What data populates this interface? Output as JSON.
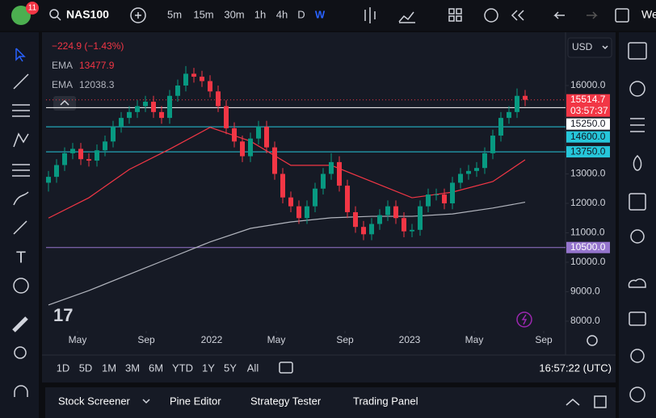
{
  "toolbar": {
    "badge": "11",
    "symbol": "NAS100",
    "intervals": [
      "5m",
      "15m",
      "30m",
      "1h",
      "4h",
      "D",
      "W"
    ],
    "active_interval": "W",
    "layout_name": "We"
  },
  "chart_data": {
    "type": "candlestick",
    "change": "−224.9 (−1.43%)",
    "currency": "USD",
    "ylim": [
      7671,
      17753
    ],
    "yticks": [
      {
        "value": 16000,
        "label": "16000.0"
      },
      {
        "value": 13000,
        "label": "13000.0"
      },
      {
        "value": 12000,
        "label": "12000.0"
      },
      {
        "value": 11000,
        "label": "11000.0"
      },
      {
        "value": 10000,
        "label": "10000.0"
      },
      {
        "value": 9000,
        "label": "9000.0"
      },
      {
        "value": 8000,
        "label": "8000.0"
      }
    ],
    "xlim": [
      -0.3,
      64
    ],
    "xticks": [
      {
        "value": 3.6,
        "label": "May"
      },
      {
        "value": 12.1,
        "label": "Sep"
      },
      {
        "value": 20.2,
        "label": "2022"
      },
      {
        "value": 28.2,
        "label": "May"
      },
      {
        "value": 36.7,
        "label": "Sep"
      },
      {
        "value": 44.7,
        "label": "2023"
      },
      {
        "value": 52.7,
        "label": "May"
      },
      {
        "value": 61.3,
        "label": "Sep"
      }
    ],
    "up_color": "#089981",
    "down_color": "#f23645",
    "candles": {
      "open": [
        12700,
        12900,
        13300,
        13700,
        13850,
        13500,
        13450,
        13800,
        14100,
        14600,
        14900,
        15100,
        15300,
        15450,
        15100,
        14900,
        15650,
        16000,
        16400,
        16300,
        16150,
        15800,
        15300,
        14550,
        14100,
        13600,
        14200,
        14600,
        13900,
        13000,
        12200,
        11900,
        11500,
        11900,
        12500,
        13000,
        13400,
        12600,
        11700,
        11200,
        10950,
        11300,
        11600,
        11900,
        11500,
        11050,
        11100,
        11900,
        12300,
        12300,
        12000,
        12700,
        13000,
        13100,
        13200,
        13700,
        14300,
        14900,
        15100,
        15650
      ],
      "high": [
        13100,
        13500,
        13900,
        14050,
        14050,
        13700,
        14000,
        14300,
        14800,
        15100,
        15300,
        15500,
        15650,
        15650,
        15300,
        15850,
        16200,
        16660,
        16600,
        16500,
        16350,
        16000,
        15500,
        14750,
        14300,
        14400,
        14800,
        14800,
        14100,
        13200,
        12400,
        12100,
        12100,
        12700,
        13200,
        13700,
        13600,
        12800,
        11900,
        11400,
        11500,
        11800,
        12100,
        12100,
        11700,
        11300,
        12100,
        12500,
        12500,
        12500,
        12900,
        13200,
        13300,
        13400,
        13900,
        14500,
        15100,
        15300,
        15900,
        15850
      ],
      "low": [
        12400,
        12700,
        13100,
        13500,
        13300,
        13250,
        13250,
        13600,
        13900,
        14400,
        14700,
        14900,
        15100,
        14900,
        14700,
        14700,
        15450,
        15800,
        16100,
        15950,
        15600,
        15100,
        14350,
        13900,
        13400,
        13400,
        14000,
        13700,
        12800,
        12000,
        11700,
        11300,
        11300,
        11700,
        12300,
        12800,
        12400,
        11500,
        11000,
        10750,
        10750,
        11100,
        11400,
        11300,
        10850,
        10850,
        10900,
        11700,
        12100,
        11800,
        11800,
        12500,
        12800,
        12900,
        13000,
        13500,
        14100,
        14700,
        14900,
        15300
      ],
      "close": [
        12900,
        13300,
        13700,
        13850,
        13500,
        13450,
        13800,
        14100,
        14600,
        14900,
        15100,
        15300,
        15450,
        15100,
        14900,
        15650,
        16000,
        16400,
        16300,
        16150,
        15800,
        15300,
        14550,
        14100,
        13600,
        14200,
        14600,
        13900,
        13000,
        12200,
        11900,
        11500,
        11900,
        12500,
        13000,
        13400,
        12600,
        11700,
        11200,
        10950,
        11300,
        11600,
        11900,
        11500,
        11050,
        11100,
        11900,
        12300,
        12300,
        12000,
        12700,
        13000,
        13100,
        13200,
        13700,
        14300,
        14900,
        15100,
        15650,
        15514.7
      ]
    },
    "emas": [
      {
        "name": "EMA",
        "value": 13477.9,
        "color": "#f23645",
        "x": [
          0,
          5,
          10,
          15,
          20,
          25,
          30,
          35,
          40,
          45,
          50,
          55,
          59
        ],
        "values": [
          11500,
          12190,
          13150,
          13840,
          14580,
          14110,
          13290,
          13290,
          12740,
          12190,
          12380,
          12740,
          13477.9
        ]
      },
      {
        "name": "EMA",
        "value": 12038.3,
        "color": "#b2b5be",
        "x": [
          0,
          5,
          10,
          15,
          20,
          25,
          30,
          35,
          40,
          45,
          50,
          55,
          59
        ],
        "values": [
          8550,
          9040,
          9590,
          10140,
          10690,
          11150,
          11370,
          11510,
          11560,
          11560,
          11640,
          11840,
          12038.3
        ]
      }
    ],
    "last_price": 15514.7,
    "countdown": "03:57:37",
    "last_color": "#f23645",
    "levels": [
      {
        "value": 15250,
        "label": "15250.0",
        "color": "#ffffff",
        "text_color": "#131722"
      },
      {
        "value": 14600,
        "label": "14600.0",
        "color": "#26c6da",
        "text_color": "#131722"
      },
      {
        "value": 13750,
        "label": "13750.0",
        "color": "#26c6da",
        "text_color": "#131722"
      },
      {
        "value": 10500,
        "label": "10500.0",
        "color": "#9575cd",
        "text_color": "#ffffff"
      }
    ]
  },
  "range_bar": {
    "ranges": [
      "1D",
      "5D",
      "1M",
      "3M",
      "6M",
      "YTD",
      "1Y",
      "5Y",
      "All"
    ],
    "clock": "16:57:22 (UTC)"
  },
  "bottom_panel": {
    "tabs": [
      "Stock Screener",
      "Pine Editor",
      "Strategy Tester",
      "Trading Panel"
    ]
  }
}
